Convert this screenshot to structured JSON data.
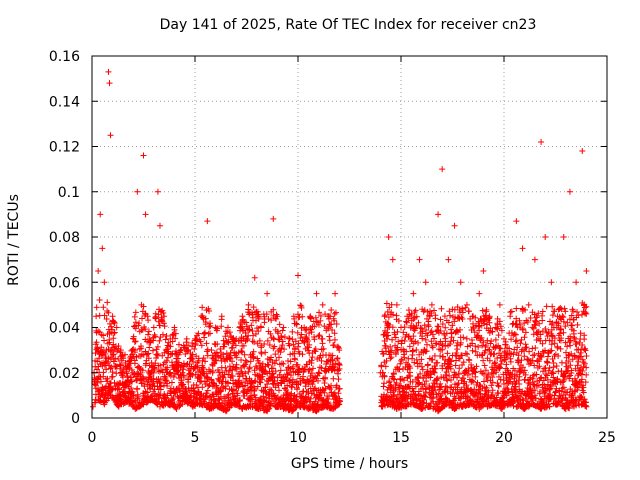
{
  "chart_data": {
    "type": "scatter",
    "title": "Day 141 of 2025, Rate Of TEC Index for receiver cn23",
    "xlabel": "GPS time / hours",
    "ylabel": "ROTI / TECUs",
    "xlim": [
      0,
      25
    ],
    "ylim": [
      0,
      0.16
    ],
    "xticks": [
      0,
      5,
      10,
      15,
      20,
      25
    ],
    "xtick_labels": [
      "0",
      "5",
      "10",
      "15",
      "20",
      "25"
    ],
    "yticks": [
      0,
      0.02,
      0.04,
      0.06,
      0.08,
      0.1,
      0.12,
      0.14,
      0.16
    ],
    "ytick_labels": [
      "0",
      "0.02",
      "0.04",
      "0.06",
      "0.08",
      "0.1",
      "0.12",
      "0.14",
      "0.16"
    ],
    "grid": true,
    "marker": "+",
    "marker_color": "#ff0000",
    "series": [
      {
        "x": [
          0.1,
          0.2,
          0.3,
          0.4,
          0.5,
          0.6,
          0.7,
          0.8,
          0.85,
          0.9,
          1.0,
          1.2,
          1.4,
          1.6,
          1.8,
          2.0,
          2.2,
          2.4,
          2.5,
          2.6,
          2.7,
          2.8,
          3.0,
          3.2,
          3.3,
          3.5,
          3.8,
          4.0,
          4.3,
          4.6,
          5.0,
          5.3,
          5.6,
          5.8,
          6.0,
          6.3,
          6.6,
          7.0,
          7.3,
          7.6,
          7.9,
          8.2,
          8.5,
          8.8,
          9.0,
          9.3,
          9.6,
          9.8,
          10.0,
          10.3,
          10.6,
          10.9,
          11.2,
          11.5,
          11.8,
          12.0,
          14.0,
          14.2,
          14.4,
          14.6,
          14.8,
          15.0,
          15.3,
          15.6,
          15.9,
          16.2,
          16.5,
          16.8,
          17.0,
          17.3,
          17.6,
          17.9,
          18.2,
          18.5,
          18.8,
          19.0,
          19.3,
          19.6,
          19.8,
          20.0,
          20.3,
          20.6,
          20.9,
          21.2,
          21.5,
          21.8,
          22.0,
          22.3,
          22.6,
          22.9,
          23.2,
          23.5,
          23.8,
          24.0
        ],
        "y": [
          0.02,
          0.045,
          0.065,
          0.09,
          0.075,
          0.06,
          0.03,
          0.153,
          0.148,
          0.125,
          0.045,
          0.04,
          0.03,
          0.028,
          0.025,
          0.035,
          0.1,
          0.05,
          0.116,
          0.09,
          0.045,
          0.035,
          0.04,
          0.1,
          0.085,
          0.045,
          0.035,
          0.04,
          0.03,
          0.035,
          0.035,
          0.045,
          0.087,
          0.03,
          0.04,
          0.045,
          0.04,
          0.035,
          0.045,
          0.05,
          0.062,
          0.04,
          0.055,
          0.088,
          0.045,
          0.04,
          0.035,
          0.045,
          0.063,
          0.04,
          0.045,
          0.055,
          0.05,
          0.045,
          0.055,
          0.03,
          0.02,
          0.045,
          0.08,
          0.07,
          0.05,
          0.04,
          0.045,
          0.055,
          0.07,
          0.06,
          0.05,
          0.09,
          0.11,
          0.07,
          0.085,
          0.06,
          0.05,
          0.045,
          0.055,
          0.065,
          0.045,
          0.04,
          0.05,
          0.035,
          0.045,
          0.087,
          0.075,
          0.05,
          0.07,
          0.122,
          0.08,
          0.06,
          0.045,
          0.08,
          0.1,
          0.06,
          0.118,
          0.065
        ]
      },
      {
        "x": [
          0.05,
          0.3,
          0.6,
          0.9,
          1.3,
          1.7,
          2.1,
          2.5,
          2.9,
          3.3,
          3.7,
          4.1,
          4.5,
          4.9,
          5.3,
          5.7,
          6.1,
          6.5,
          6.9,
          7.3,
          7.7,
          8.1,
          8.5,
          8.9,
          9.3,
          9.7,
          10.1,
          10.5,
          10.9,
          11.3,
          11.7,
          12.0,
          14.1,
          14.4,
          14.8,
          15.2,
          15.6,
          16.0,
          16.4,
          16.8,
          17.2,
          17.6,
          18.0,
          18.4,
          18.8,
          19.2,
          19.5,
          19.9,
          20.2,
          20.6,
          21.0,
          21.4,
          21.8,
          22.2,
          22.6,
          23.0,
          23.4,
          23.8,
          24.0
        ],
        "y": [
          0.005,
          0.008,
          0.006,
          0.01,
          0.005,
          0.007,
          0.004,
          0.006,
          0.008,
          0.005,
          0.006,
          0.004,
          0.007,
          0.005,
          0.006,
          0.004,
          0.005,
          0.003,
          0.006,
          0.004,
          0.005,
          0.004,
          0.003,
          0.005,
          0.004,
          0.003,
          0.005,
          0.004,
          0.003,
          0.005,
          0.004,
          0.006,
          0.005,
          0.006,
          0.004,
          0.005,
          0.006,
          0.004,
          0.005,
          0.003,
          0.006,
          0.004,
          0.005,
          0.006,
          0.004,
          0.005,
          0.006,
          0.004,
          0.006,
          0.005,
          0.004,
          0.006,
          0.004,
          0.005,
          0.006,
          0.004,
          0.005,
          0.006,
          0.005
        ]
      }
    ]
  }
}
